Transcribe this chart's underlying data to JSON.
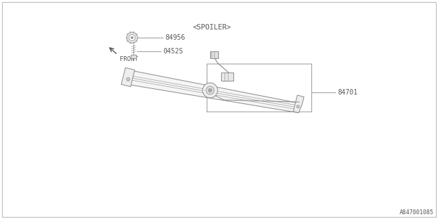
{
  "bg_color": "#ffffff",
  "border_color": "#aaaaaa",
  "line_color": "#888888",
  "text_color": "#555555",
  "diagram_id": "A847001085",
  "labels": {
    "part1": "84701",
    "part2": "0452S",
    "part3": "84956",
    "section": "<SPOILER>"
  },
  "front_label": "FRONT",
  "figsize": [
    6.4,
    3.2
  ],
  "dpi": 100
}
